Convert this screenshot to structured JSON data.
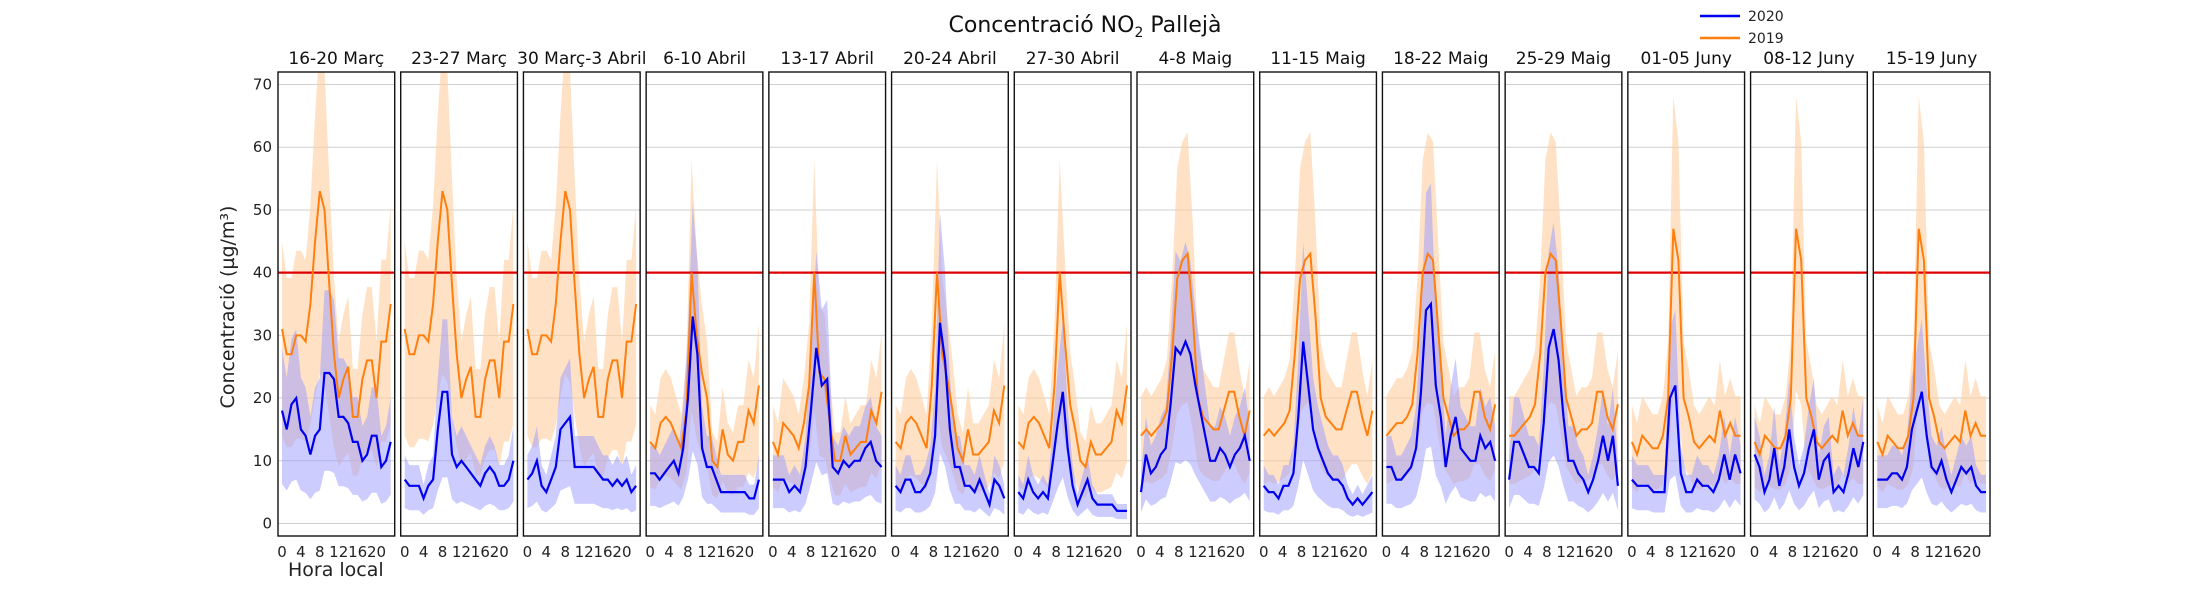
{
  "chart_data": {
    "type": "line",
    "title_main": "Concentració NO",
    "title_sub": "2",
    "title_end": " Pallejà",
    "ylabel": "Concentració (µg/m³)",
    "xlabel": "Hora local",
    "ylim": [
      -2,
      72
    ],
    "xlim": [
      0,
      23
    ],
    "yticks": [
      0,
      10,
      20,
      30,
      40,
      50,
      60,
      70
    ],
    "xticks": [
      0,
      4,
      8,
      12,
      16,
      20
    ],
    "limit_value": 40,
    "legend_position": "top-right",
    "grid": true,
    "colors": {
      "s2020": "#0000ee",
      "s2019": "#ff7f0e",
      "band2020": "#9999ff",
      "band2019": "#ffcf9e",
      "limit": "#dd0000"
    },
    "legend": [
      {
        "name": "2020",
        "color": "#0000ee"
      },
      {
        "name": "2019",
        "color": "#ff7f0e"
      }
    ],
    "panels": [
      {
        "label": "16-20 Març",
        "s2020": [
          18,
          15,
          19,
          20,
          15,
          14,
          11,
          14,
          15,
          24,
          24,
          23,
          17,
          17,
          16,
          13,
          13,
          10,
          11,
          14,
          14,
          9,
          10,
          13
        ],
        "s2019": [
          31,
          27,
          27,
          30,
          30,
          29,
          35,
          45,
          53,
          50,
          38,
          27,
          20,
          23,
          25,
          17,
          17,
          23,
          26,
          26,
          20,
          29,
          29,
          35
        ]
      },
      {
        "label": "23-27 Març",
        "s2020": [
          7,
          6,
          6,
          6,
          4,
          6,
          7,
          15,
          21,
          21,
          11,
          9,
          10,
          9,
          8,
          7,
          6,
          8,
          9,
          8,
          6,
          6,
          7,
          10
        ],
        "s2019": [
          31,
          27,
          27,
          30,
          30,
          29,
          35,
          45,
          53,
          50,
          38,
          27,
          20,
          23,
          25,
          17,
          17,
          23,
          26,
          26,
          20,
          29,
          29,
          35
        ]
      },
      {
        "label": "30 Març-3 Abril",
        "s2020": [
          7,
          8,
          10,
          6,
          5,
          7,
          9,
          15,
          16,
          17,
          9,
          9,
          9,
          9,
          9,
          8,
          7,
          7,
          6,
          7,
          6,
          7,
          5,
          6
        ],
        "s2019": [
          31,
          27,
          27,
          30,
          30,
          29,
          35,
          45,
          53,
          50,
          38,
          27,
          20,
          23,
          25,
          17,
          17,
          23,
          26,
          26,
          20,
          29,
          29,
          35
        ]
      },
      {
        "label": "6-10 Abril",
        "s2020": [
          8,
          8,
          7,
          8,
          9,
          10,
          8,
          12,
          20,
          33,
          27,
          12,
          9,
          9,
          7,
          5,
          5,
          5,
          5,
          5,
          5,
          4,
          4,
          7
        ],
        "s2019": [
          13,
          12,
          16,
          17,
          16,
          14,
          12,
          18,
          40,
          30,
          24,
          20,
          10,
          9,
          15,
          11,
          10,
          13,
          13,
          18,
          16,
          22
        ]
      },
      {
        "label": "13-17 Abril",
        "s2020": [
          7,
          7,
          7,
          5,
          6,
          5,
          9,
          18,
          28,
          22,
          23,
          9,
          8,
          10,
          9,
          10,
          10,
          12,
          13,
          10,
          9
        ],
        "s2019": [
          13,
          11,
          16,
          15,
          14,
          12,
          16,
          22,
          40,
          24,
          23,
          16,
          10,
          10,
          14,
          11,
          12,
          13,
          13,
          18,
          16,
          21
        ]
      },
      {
        "label": "20-24 Abril",
        "s2020": [
          6,
          5,
          7,
          7,
          5,
          5,
          6,
          8,
          14,
          32,
          26,
          15,
          9,
          9,
          6,
          6,
          5,
          7,
          5,
          3,
          7,
          6,
          4
        ],
        "s2019": [
          13,
          12,
          16,
          17,
          16,
          14,
          12,
          22,
          40,
          27,
          23,
          18,
          12,
          10,
          15,
          11,
          11,
          12,
          13,
          18,
          16,
          22
        ]
      },
      {
        "label": "27-30 Abril",
        "s2020": [
          5,
          4,
          7,
          5,
          4,
          5,
          4,
          10,
          16,
          21,
          12,
          6,
          3,
          5,
          7,
          4,
          3,
          3,
          3,
          3,
          2,
          2,
          2
        ],
        "s2019": [
          13,
          12,
          16,
          17,
          16,
          14,
          12,
          22,
          40,
          29,
          19,
          15,
          10,
          9,
          13,
          11,
          11,
          12,
          13,
          18,
          16,
          22
        ]
      },
      {
        "label": "4-8 Maig",
        "s2020": [
          5,
          11,
          8,
          9,
          11,
          12,
          19,
          28,
          27,
          29,
          27,
          22,
          18,
          14,
          10,
          10,
          12,
          11,
          9,
          11,
          12,
          14,
          10
        ],
        "s2019": [
          14,
          15,
          14,
          15,
          16,
          18,
          27,
          39,
          42,
          43,
          33,
          20,
          17,
          16,
          15,
          15,
          18,
          21,
          21,
          17,
          14,
          18
        ]
      },
      {
        "label": "11-15 Maig",
        "s2020": [
          6,
          5,
          5,
          4,
          6,
          6,
          8,
          17,
          29,
          22,
          15,
          12,
          10,
          8,
          7,
          7,
          6,
          4,
          3,
          4,
          3,
          4,
          5
        ],
        "s2019": [
          14,
          15,
          14,
          15,
          16,
          18,
          27,
          39,
          42,
          43,
          33,
          20,
          17,
          16,
          15,
          15,
          18,
          21,
          21,
          17,
          14,
          18
        ]
      },
      {
        "label": "18-22 Maig",
        "s2020": [
          9,
          9,
          7,
          7,
          8,
          9,
          12,
          21,
          34,
          35,
          22,
          17,
          9,
          14,
          17,
          12,
          11,
          10,
          10,
          14,
          12,
          13,
          10
        ],
        "s2019": [
          14,
          15,
          16,
          16,
          17,
          19,
          27,
          40,
          43,
          42,
          31,
          20,
          17,
          14,
          15,
          15,
          16,
          21,
          21,
          17,
          15,
          19
        ]
      },
      {
        "label": "25-29 Maig",
        "s2020": [
          7,
          13,
          13,
          11,
          9,
          9,
          8,
          16,
          28,
          31,
          26,
          17,
          10,
          10,
          8,
          7,
          5,
          7,
          10,
          14,
          10,
          14,
          6
        ],
        "s2019": [
          14,
          14,
          15,
          16,
          17,
          19,
          27,
          40,
          43,
          42,
          32,
          20,
          17,
          14,
          15,
          15,
          16,
          21,
          21,
          17,
          15,
          19
        ]
      },
      {
        "label": "01-05 Juny",
        "s2020": [
          7,
          6,
          6,
          6,
          5,
          5,
          5,
          20,
          22,
          8,
          5,
          5,
          7,
          6,
          6,
          5,
          7,
          11,
          7,
          11,
          8
        ],
        "s2019": [
          13,
          11,
          14,
          13,
          12,
          12,
          14,
          20,
          47,
          42,
          20,
          17,
          13,
          12,
          13,
          14,
          13,
          18,
          14,
          16,
          14,
          14
        ]
      },
      {
        "label": "08-12 Juny",
        "s2020": [
          11,
          9,
          5,
          7,
          12,
          6,
          9,
          15,
          9,
          6,
          8,
          12,
          15,
          7,
          10,
          11,
          5,
          6,
          5,
          8,
          12,
          9,
          13
        ],
        "s2019": [
          13,
          11,
          14,
          13,
          12,
          12,
          14,
          20,
          47,
          42,
          20,
          17,
          13,
          12,
          13,
          14,
          13,
          18,
          14,
          16,
          14,
          14
        ]
      },
      {
        "label": "15-19 Juny",
        "s2020": [
          7,
          7,
          7,
          8,
          8,
          7,
          9,
          15,
          18,
          21,
          14,
          9,
          8,
          10,
          7,
          5,
          7,
          9,
          8,
          9,
          6,
          5,
          5
        ],
        "s2019": [
          13,
          11,
          14,
          13,
          12,
          12,
          14,
          20,
          47,
          42,
          20,
          17,
          13,
          12,
          13,
          14,
          13,
          18,
          14,
          16,
          14,
          14
        ]
      }
    ]
  }
}
